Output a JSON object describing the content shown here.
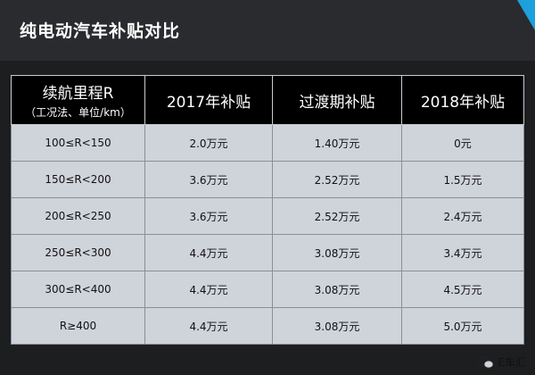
{
  "title": "纯电动汽车补贴对比",
  "table": {
    "headers": [
      {
        "main": "续航里程R",
        "sub": "（工况法、单位/km）"
      },
      {
        "main": "2017年补贴",
        "sub": ""
      },
      {
        "main": "过渡期补贴",
        "sub": ""
      },
      {
        "main": "2018年补贴",
        "sub": ""
      }
    ],
    "rows": [
      [
        "100≤R<150",
        "2.0万元",
        "1.40万元",
        "0元"
      ],
      [
        "150≤R<200",
        "3.6万元",
        "2.52万元",
        "1.5万元"
      ],
      [
        "200≤R<250",
        "3.6万元",
        "2.52万元",
        "2.4万元"
      ],
      [
        "250≤R<300",
        "4.4万元",
        "3.08万元",
        "3.4万元"
      ],
      [
        "300≤R<400",
        "4.4万元",
        "3.08万元",
        "4.5万元"
      ],
      [
        "R≥400",
        "4.4万元",
        "3.08万元",
        "5.0万元"
      ]
    ]
  },
  "watermark": {
    "text": "E车汇",
    "icon": "wechat-icon"
  },
  "colors": {
    "background": "#1d1e20",
    "header": "#000000",
    "cell": "#cfd3da",
    "accent": "#1ea0dc"
  }
}
